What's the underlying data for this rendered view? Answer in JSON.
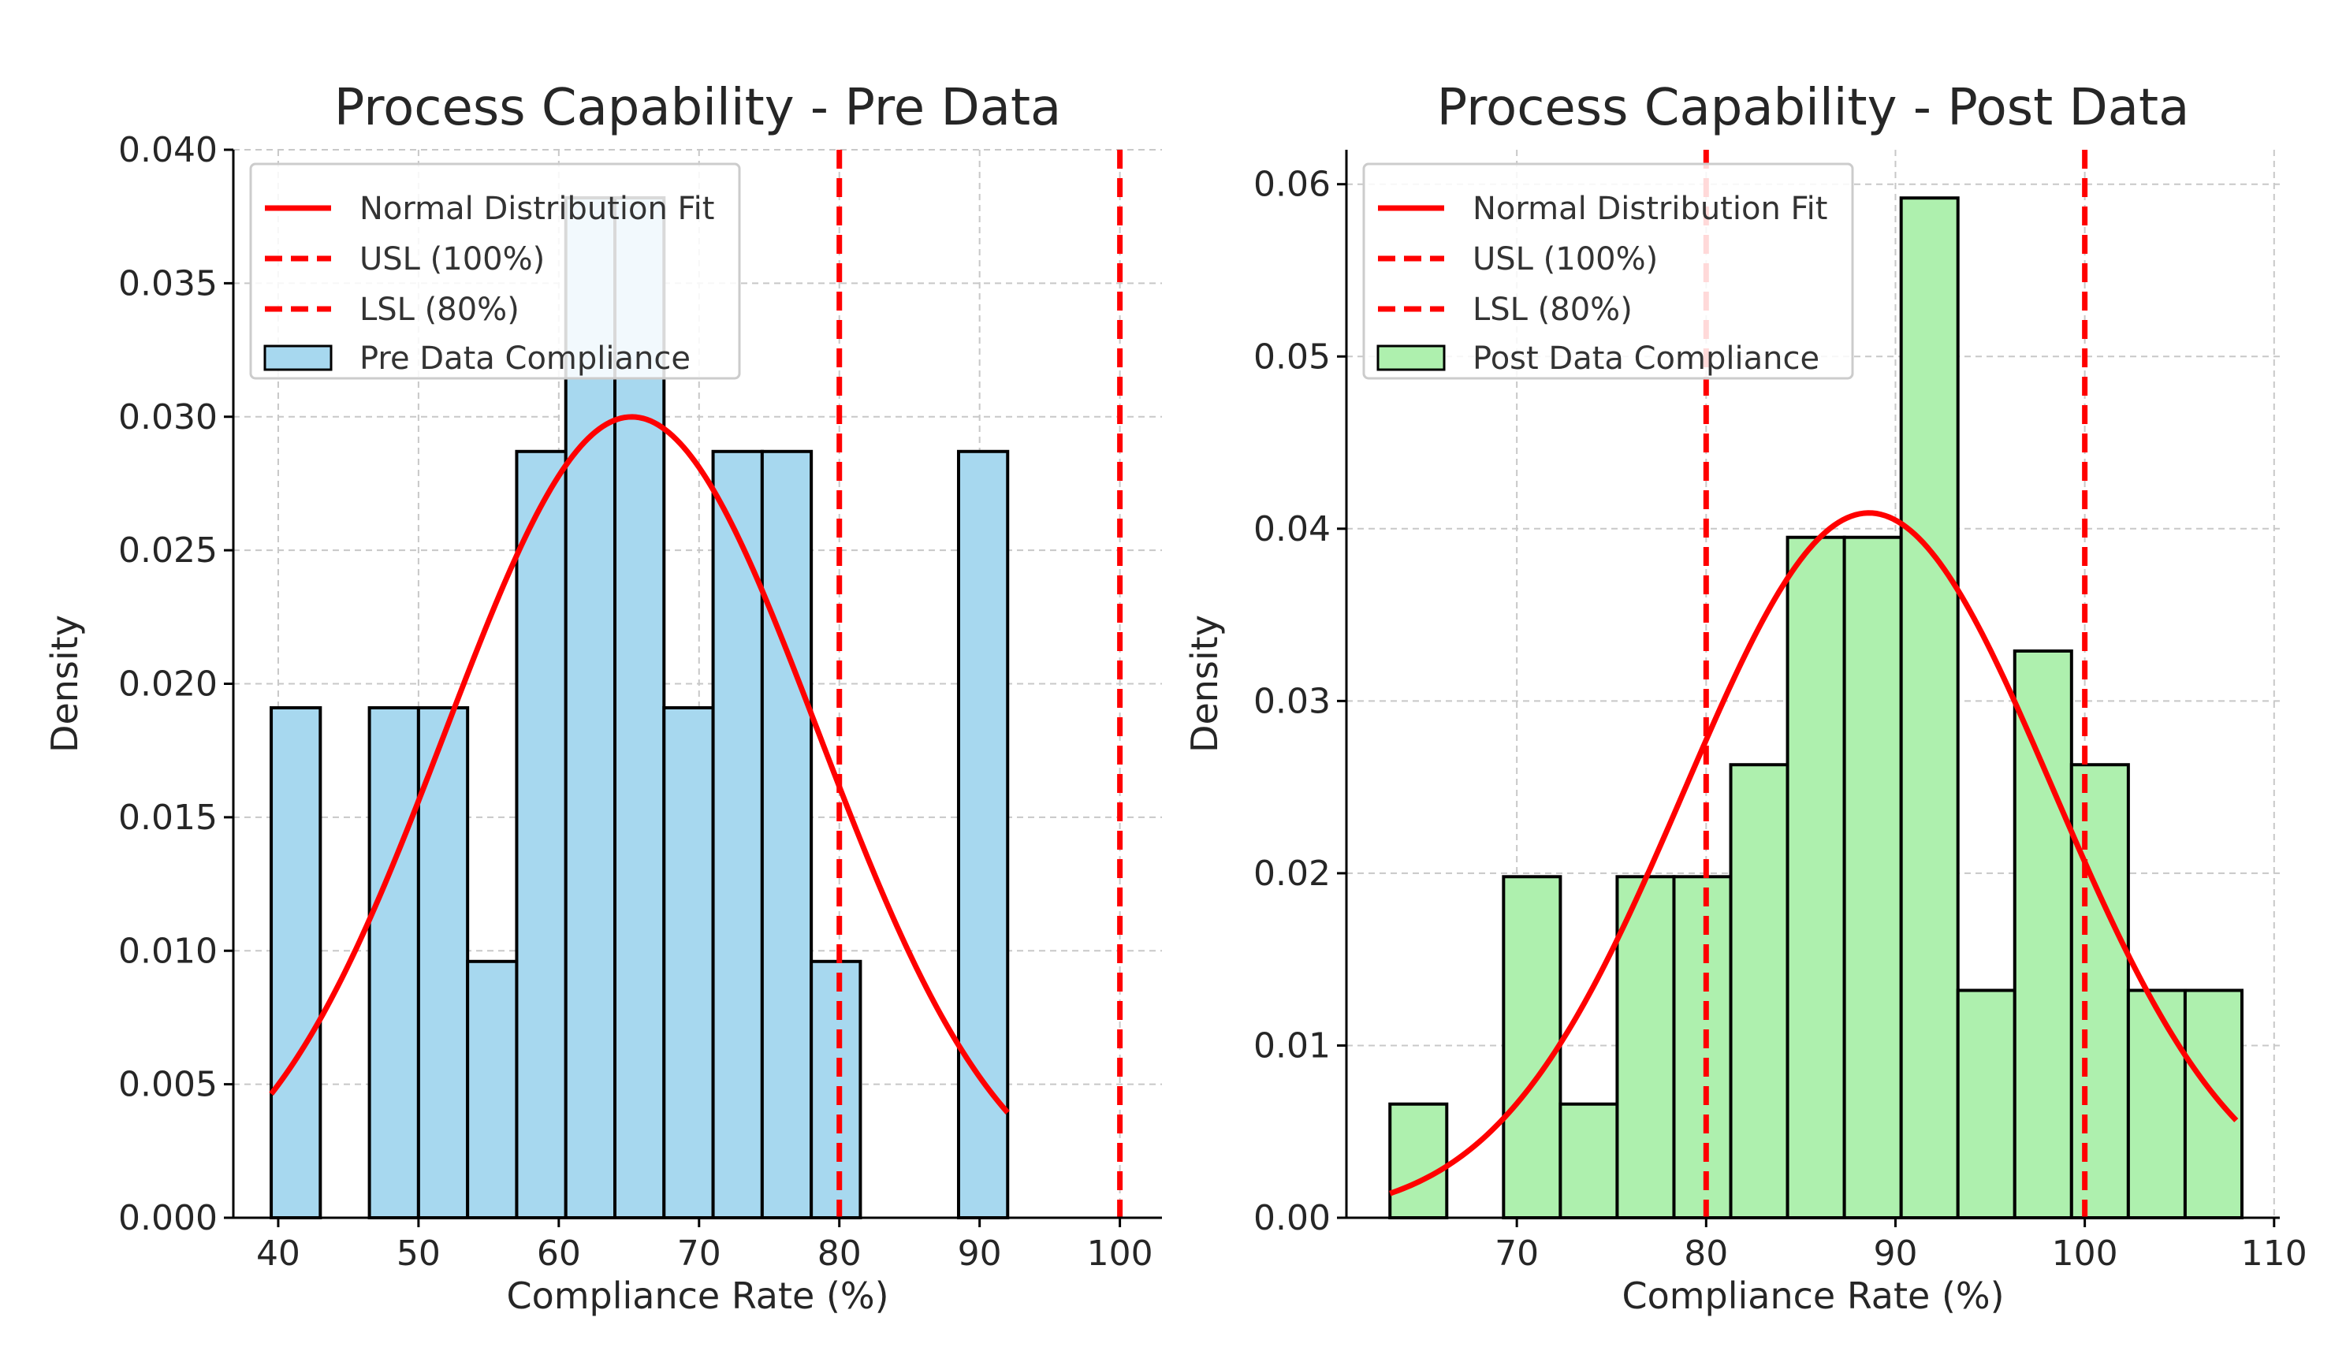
{
  "chart_data": [
    {
      "type": "bar",
      "title": "Process Capability - Pre Data",
      "xlabel": "Compliance Rate (%)",
      "ylabel": "Density",
      "xlim": [
        36.8,
        103.0
      ],
      "ylim": [
        0,
        0.04
      ],
      "xticks": [
        40,
        50,
        60,
        70,
        80,
        90,
        100
      ],
      "xtick_labels": [
        "40",
        "50",
        "60",
        "70",
        "80",
        "90",
        "100"
      ],
      "yticks": [
        0,
        0.005,
        0.01,
        0.015,
        0.02,
        0.025,
        0.03,
        0.035,
        0.04
      ],
      "ytick_labels": [
        "0.000",
        "0.005",
        "0.010",
        "0.015",
        "0.020",
        "0.025",
        "0.030",
        "0.035",
        "0.040"
      ],
      "grid": true,
      "legend_position": "top-left",
      "legend": [
        "Normal Distribution Fit",
        "USL (100%)",
        "LSL (80%)",
        "Pre Data Compliance"
      ],
      "bins": [
        {
          "x0": 39.5,
          "x1": 43.0,
          "density": 0.0191
        },
        {
          "x0": 43.0,
          "x1": 46.5,
          "density": 0.0
        },
        {
          "x0": 46.5,
          "x1": 50.0,
          "density": 0.0191
        },
        {
          "x0": 50.0,
          "x1": 53.5,
          "density": 0.0191
        },
        {
          "x0": 53.5,
          "x1": 57.0,
          "density": 0.0096
        },
        {
          "x0": 57.0,
          "x1": 60.5,
          "density": 0.0287
        },
        {
          "x0": 60.5,
          "x1": 64.0,
          "density": 0.0382
        },
        {
          "x0": 64.0,
          "x1": 67.5,
          "density": 0.0382
        },
        {
          "x0": 67.5,
          "x1": 71.0,
          "density": 0.0191
        },
        {
          "x0": 71.0,
          "x1": 74.5,
          "density": 0.0287
        },
        {
          "x0": 74.5,
          "x1": 78.0,
          "density": 0.0287
        },
        {
          "x0": 78.0,
          "x1": 81.5,
          "density": 0.0096
        },
        {
          "x0": 81.5,
          "x1": 85.0,
          "density": 0.0
        },
        {
          "x0": 85.0,
          "x1": 88.5,
          "density": 0.0
        },
        {
          "x0": 88.5,
          "x1": 92.0,
          "density": 0.0287
        }
      ],
      "normal_fit": {
        "mean": 65.2,
        "std": 13.3,
        "x_range": [
          39.5,
          92.0
        ]
      },
      "usl": 100,
      "lsl": 80,
      "colors": {
        "bars": "#a7d8ef",
        "fit": "#ff0000",
        "limits": "#ff0000"
      }
    },
    {
      "type": "bar",
      "title": "Process Capability - Post Data",
      "xlabel": "Compliance Rate (%)",
      "ylabel": "Density",
      "xlim": [
        61.0,
        110.3
      ],
      "ylim": [
        0,
        0.062
      ],
      "xticks": [
        70,
        80,
        90,
        100,
        110
      ],
      "xtick_labels": [
        "70",
        "80",
        "90",
        "100",
        "110"
      ],
      "yticks": [
        0,
        0.01,
        0.02,
        0.03,
        0.04,
        0.05,
        0.06
      ],
      "ytick_labels": [
        "0.00",
        "0.01",
        "0.02",
        "0.03",
        "0.04",
        "0.05",
        "0.06"
      ],
      "grid": true,
      "legend_position": "top-left",
      "legend": [
        "Normal Distribution Fit",
        "USL (100%)",
        "LSL (80%)",
        "Post Data Compliance"
      ],
      "bins": [
        {
          "x0": 63.3,
          "x1": 66.3,
          "density": 0.0066
        },
        {
          "x0": 66.3,
          "x1": 69.3,
          "density": 0.0
        },
        {
          "x0": 69.3,
          "x1": 72.3,
          "density": 0.0198
        },
        {
          "x0": 72.3,
          "x1": 75.3,
          "density": 0.0066
        },
        {
          "x0": 75.3,
          "x1": 78.3,
          "density": 0.0198
        },
        {
          "x0": 78.3,
          "x1": 81.3,
          "density": 0.0198
        },
        {
          "x0": 81.3,
          "x1": 84.3,
          "density": 0.0263
        },
        {
          "x0": 84.3,
          "x1": 87.3,
          "density": 0.0395
        },
        {
          "x0": 87.3,
          "x1": 90.3,
          "density": 0.0395
        },
        {
          "x0": 90.3,
          "x1": 93.3,
          "density": 0.0592
        },
        {
          "x0": 93.3,
          "x1": 96.3,
          "density": 0.0132
        },
        {
          "x0": 96.3,
          "x1": 99.3,
          "density": 0.0329
        },
        {
          "x0": 99.3,
          "x1": 102.3,
          "density": 0.0263
        },
        {
          "x0": 102.3,
          "x1": 105.3,
          "density": 0.0132
        },
        {
          "x0": 105.3,
          "x1": 108.3,
          "density": 0.0132
        }
      ],
      "normal_fit": {
        "mean": 88.6,
        "std": 9.75,
        "x_range": [
          63.3,
          108.0
        ]
      },
      "usl": 100,
      "lsl": 80,
      "colors": {
        "bars": "#aef0ae",
        "fit": "#ff0000",
        "limits": "#ff0000"
      }
    }
  ]
}
